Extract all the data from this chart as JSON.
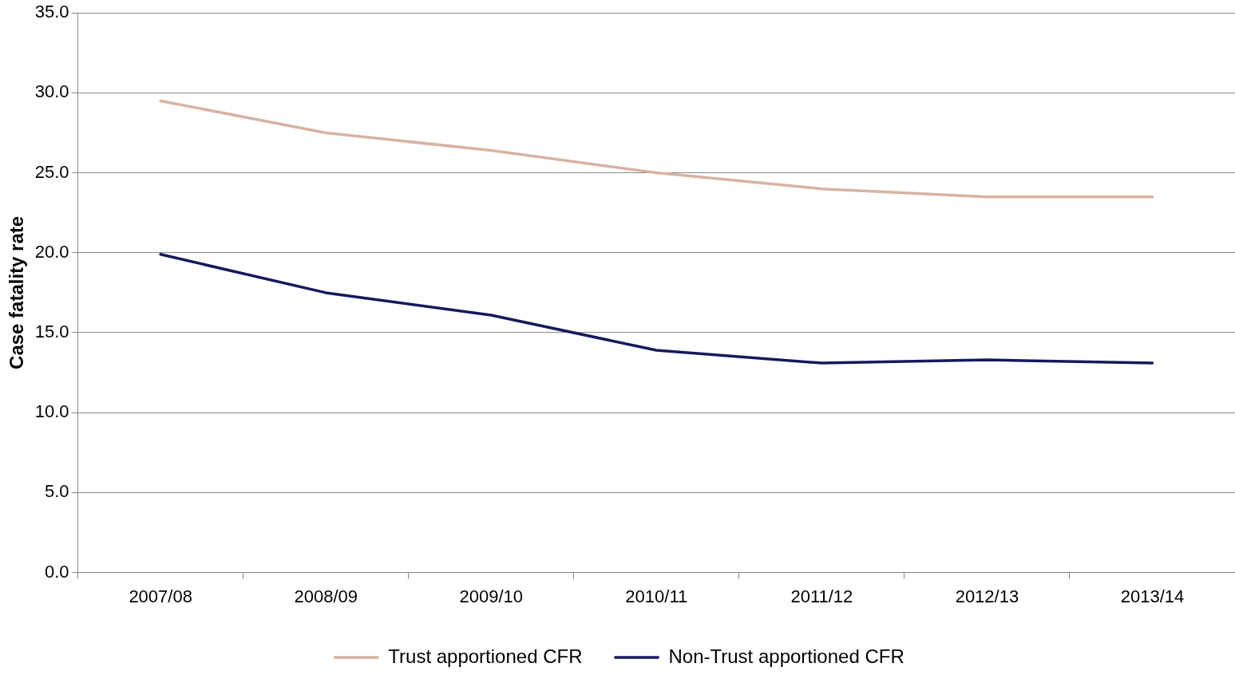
{
  "chart_data": {
    "type": "line",
    "ylabel": "Case fatality rate",
    "categories": [
      "2007/08",
      "2008/09",
      "2009/10",
      "2010/11",
      "2011/12",
      "2012/13",
      "2013/14"
    ],
    "series": [
      {
        "name": "Trust apportioned CFR",
        "color": "#d8b2a1",
        "values": [
          29.5,
          27.5,
          26.4,
          25.0,
          24.0,
          23.5,
          23.5
        ]
      },
      {
        "name": "Non-Trust apportioned CFR",
        "color": "#141a5c",
        "values": [
          19.9,
          17.5,
          16.1,
          13.9,
          13.1,
          13.3,
          13.1
        ]
      }
    ],
    "ylim": [
      0,
      35
    ],
    "yticks": [
      {
        "value": 0,
        "label": "0.0"
      },
      {
        "value": 5,
        "label": "5.0"
      },
      {
        "value": 10,
        "label": "10.0"
      },
      {
        "value": 15,
        "label": "15.0"
      },
      {
        "value": 20,
        "label": "20.0"
      },
      {
        "value": 25,
        "label": "25.0"
      },
      {
        "value": 30,
        "label": "30.0"
      },
      {
        "value": 35,
        "label": "35.0"
      }
    ],
    "grid": "y",
    "legend": "bottom",
    "marker": "none",
    "line_style": "solid"
  }
}
